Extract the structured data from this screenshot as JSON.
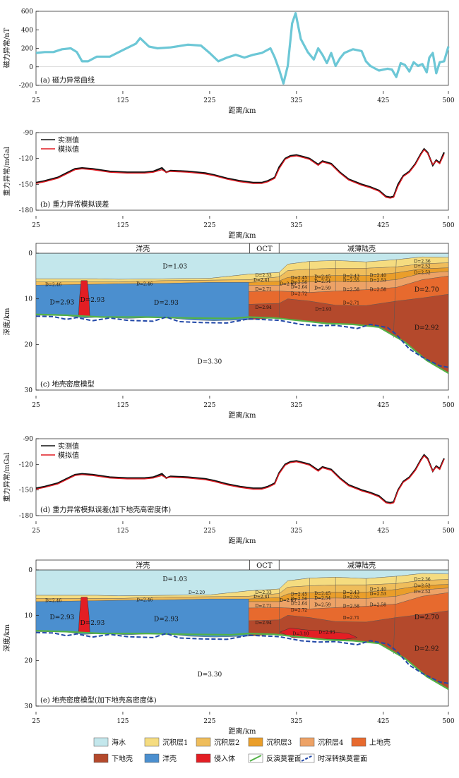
{
  "colors": {
    "magnetic": "#6cc7d6",
    "observed": "#111111",
    "modeled": "#e01b22",
    "sea": "#c3e7ec",
    "sed1": "#f5dc80",
    "sed2": "#efbd5b",
    "sed3": "#ea9e2a",
    "sed4": "#eda266",
    "upper_crust": "#e76a2e",
    "lower_crust": "#b4492c",
    "ocean_crust": "#4b8fcf",
    "intrusion": "#e31e24",
    "moho_inv": "#53b247",
    "moho_dt": "#2248a8"
  },
  "x_ticks": [
    "25",
    "125",
    "225",
    "325",
    "425",
    "500"
  ],
  "distance_label": "距离/km",
  "chart_data": [
    {
      "type": "line",
      "caption": "(a) 磁力异常曲线",
      "ylabel": "磁力异常/nT",
      "xlabel": "距离/km",
      "xlim": [
        25,
        500
      ],
      "ylim": [
        -200,
        600
      ],
      "yticks": [
        "600",
        "400",
        "200",
        "0",
        "-200"
      ],
      "series": [
        {
          "x": [
            25,
            35,
            45,
            55,
            65,
            72,
            78,
            85,
            95,
            110,
            125,
            140,
            145,
            155,
            165,
            180,
            200,
            215,
            225,
            235,
            245,
            255,
            265,
            275,
            285,
            295,
            300,
            305,
            310,
            315,
            320,
            324,
            330,
            338,
            345,
            350,
            355,
            360,
            365,
            370,
            375,
            380,
            390,
            400,
            405,
            410,
            420,
            430,
            435,
            440,
            445,
            450,
            455,
            460,
            465,
            470,
            475,
            478,
            482,
            486,
            490,
            495,
            500
          ],
          "y": [
            150,
            160,
            160,
            190,
            200,
            160,
            60,
            60,
            110,
            110,
            180,
            250,
            310,
            220,
            200,
            210,
            240,
            230,
            150,
            60,
            100,
            130,
            100,
            130,
            150,
            200,
            100,
            -30,
            -180,
            10,
            470,
            580,
            300,
            160,
            80,
            200,
            130,
            40,
            150,
            10,
            90,
            150,
            190,
            170,
            60,
            10,
            -40,
            -20,
            -30,
            -110,
            40,
            20,
            -50,
            50,
            10,
            30,
            -60,
            100,
            150,
            -70,
            50,
            60,
            220
          ]
        }
      ]
    },
    {
      "type": "line",
      "caption": "(b) 重力异常模拟误差",
      "ylabel": "重力异常/mGal",
      "xlabel": "距离/km",
      "xlim": [
        25,
        500
      ],
      "ylim": [
        -180,
        -90
      ],
      "yticks": [
        "-90",
        "-120",
        "-150",
        "-180"
      ],
      "legend": [
        "实测值",
        "模拟值"
      ],
      "series": [
        {
          "name": "实测值",
          "x": [
            25,
            35,
            50,
            60,
            70,
            78,
            90,
            110,
            130,
            150,
            160,
            170,
            175,
            180,
            200,
            220,
            230,
            245,
            260,
            275,
            285,
            292,
            300,
            305,
            312,
            318,
            325,
            333,
            340,
            350,
            355,
            365,
            375,
            385,
            400,
            410,
            420,
            428,
            433,
            437,
            442,
            448,
            455,
            462,
            468,
            472,
            476,
            482,
            486,
            490,
            495
          ],
          "y": [
            -148,
            -146,
            -142,
            -137,
            -132,
            -131,
            -132,
            -135,
            -136,
            -136,
            -135,
            -131,
            -136,
            -134,
            -135,
            -137,
            -139,
            -143,
            -146,
            -148,
            -148,
            -146,
            -142,
            -130,
            -120,
            -117,
            -116,
            -118,
            -120,
            -127,
            -123,
            -126,
            -136,
            -144,
            -150,
            -153,
            -157,
            -164,
            -165,
            -164,
            -150,
            -140,
            -135,
            -126,
            -115,
            -109,
            -113,
            -128,
            -122,
            -125,
            -113
          ]
        },
        {
          "name": "模拟值",
          "x": [
            25,
            35,
            50,
            60,
            70,
            78,
            90,
            110,
            130,
            150,
            160,
            170,
            175,
            180,
            200,
            220,
            230,
            245,
            260,
            275,
            285,
            292,
            300,
            305,
            312,
            318,
            325,
            333,
            340,
            350,
            355,
            365,
            375,
            385,
            400,
            410,
            420,
            428,
            433,
            437,
            442,
            448,
            455,
            462,
            468,
            472,
            476,
            482,
            486,
            490,
            495
          ],
          "y": [
            -149,
            -147,
            -143,
            -138,
            -133,
            -132,
            -133,
            -136,
            -137,
            -137,
            -136,
            -133,
            -136,
            -135,
            -136,
            -138,
            -140,
            -144,
            -147,
            -149,
            -149,
            -147,
            -143,
            -132,
            -121,
            -118,
            -117,
            -119,
            -121,
            -128,
            -124,
            -127,
            -137,
            -145,
            -151,
            -154,
            -158,
            -165,
            -166,
            -165,
            -152,
            -141,
            -136,
            -127,
            -116,
            -110,
            -114,
            -127,
            -123,
            -126,
            -115
          ]
        }
      ]
    },
    {
      "type": "section",
      "caption": "(c) 地壳密度模型",
      "ylabel": "深度/km",
      "xlabel": "距离/km",
      "xlim": [
        25,
        500
      ],
      "ylim": [
        0,
        30
      ],
      "yticks": [
        "0",
        "10",
        "20",
        "30"
      ],
      "zones": [
        "洋壳",
        "OCT",
        "减薄陆壳"
      ],
      "density_labels": [
        "D=1.03",
        "D=2.46",
        "D=2.93",
        "D=2.93",
        "D=2.93",
        "D=2.46",
        "D=3.30",
        "D=2.33",
        "D=2.41",
        "D=2.63",
        "D=2.71",
        "D=2.94",
        "D=2.45",
        "D=2.56",
        "D=2.64",
        "D=2.72",
        "D=2.45",
        "D=2.54",
        "D=2.59",
        "D=2.43",
        "D=2.55",
        "D=2.58",
        "D=2.71",
        "D=2.93",
        "D=2.40",
        "D=2.53",
        "D=2.58",
        "D=2.36",
        "D=2.52",
        "D=2.52",
        "D=2.70",
        "D=2.92"
      ]
    },
    {
      "type": "line",
      "caption": "(d) 重力异常模拟误差(加下地壳高密度体)",
      "ylabel": "重力异常/mGal",
      "xlabel": "距离/km",
      "xlim": [
        25,
        500
      ],
      "ylim": [
        -180,
        -90
      ],
      "yticks": [
        "-90",
        "-120",
        "-150",
        "-180"
      ],
      "legend": [
        "实测值",
        "模拟值"
      ],
      "series": [
        {
          "name": "实测值",
          "x": [
            25,
            35,
            50,
            60,
            70,
            78,
            90,
            110,
            130,
            150,
            160,
            170,
            175,
            180,
            200,
            220,
            230,
            245,
            260,
            275,
            285,
            292,
            300,
            305,
            312,
            318,
            325,
            333,
            340,
            350,
            355,
            365,
            375,
            385,
            400,
            410,
            420,
            428,
            433,
            437,
            442,
            448,
            455,
            462,
            468,
            472,
            476,
            482,
            486,
            490,
            495
          ],
          "y": [
            -148,
            -146,
            -142,
            -137,
            -132,
            -131,
            -132,
            -135,
            -136,
            -136,
            -135,
            -131,
            -136,
            -134,
            -135,
            -137,
            -139,
            -143,
            -146,
            -148,
            -148,
            -146,
            -142,
            -130,
            -120,
            -117,
            -116,
            -118,
            -120,
            -127,
            -123,
            -126,
            -136,
            -144,
            -150,
            -153,
            -157,
            -164,
            -165,
            -164,
            -150,
            -140,
            -135,
            -126,
            -115,
            -109,
            -113,
            -128,
            -122,
            -125,
            -113
          ]
        },
        {
          "name": "模拟值",
          "x": [
            25,
            35,
            50,
            60,
            70,
            78,
            90,
            110,
            130,
            150,
            160,
            170,
            175,
            180,
            200,
            220,
            230,
            245,
            260,
            275,
            285,
            292,
            300,
            305,
            312,
            318,
            325,
            333,
            340,
            350,
            355,
            365,
            375,
            385,
            400,
            410,
            420,
            428,
            433,
            437,
            442,
            448,
            455,
            462,
            468,
            472,
            476,
            482,
            486,
            490,
            495
          ],
          "y": [
            -149,
            -147,
            -143,
            -138,
            -133,
            -132,
            -133,
            -136,
            -137,
            -137,
            -136,
            -133,
            -136,
            -135,
            -136,
            -138,
            -140,
            -144,
            -147,
            -149,
            -149,
            -147,
            -143,
            -131,
            -121,
            -118,
            -117,
            -119,
            -121,
            -128,
            -124,
            -127,
            -137,
            -145,
            -151,
            -154,
            -158,
            -165,
            -166,
            -165,
            -151,
            -141,
            -136,
            -127,
            -116,
            -110,
            -114,
            -128,
            -123,
            -126,
            -114
          ]
        }
      ]
    },
    {
      "type": "section",
      "caption": "(e) 地壳密度模型(加下地壳高密度体)",
      "ylabel": "深度/km",
      "xlabel": "距离/km",
      "xlim": [
        25,
        500
      ],
      "ylim": [
        0,
        30
      ],
      "yticks": [
        "0",
        "10",
        "20",
        "30"
      ],
      "zones": [
        "洋壳",
        "OCT",
        "减薄陆壳"
      ],
      "density_labels": [
        "D=1.03",
        "D=2.46",
        "D=2.93",
        "D=2.93",
        "D=2.93",
        "D=2.46",
        "D=2.20",
        "D=3.30",
        "D=2.33",
        "D=2.41",
        "D=2.63",
        "D=2.71",
        "D=2.94",
        "D=2.45",
        "D=2.56",
        "D=2.64",
        "D=2.72",
        "D=2.45",
        "D=2.54",
        "D=2.59",
        "D=2.43",
        "D=2.55",
        "D=2.58",
        "D=2.71",
        "D=2.93",
        "D=2.40",
        "D=2.53",
        "D=2.58",
        "D=2.36",
        "D=2.52",
        "D=2.52",
        "D=2.70",
        "D=2.92",
        "D=3.10"
      ]
    }
  ],
  "legend": [
    {
      "label": "海水",
      "color": "#c3e7ec",
      "kind": "box"
    },
    {
      "label": "沉积层1",
      "color": "#f5dc80",
      "kind": "box"
    },
    {
      "label": "沉积层2",
      "color": "#efbd5b",
      "kind": "box"
    },
    {
      "label": "沉积层3",
      "color": "#ea9e2a",
      "kind": "box"
    },
    {
      "label": "沉积层4",
      "color": "#eda266",
      "kind": "box"
    },
    {
      "label": "上地壳",
      "color": "#e76a2e",
      "kind": "box"
    },
    {
      "label": "下地壳",
      "color": "#b4492c",
      "kind": "box"
    },
    {
      "label": "洋壳",
      "color": "#4b8fcf",
      "kind": "box"
    },
    {
      "label": "侵入体",
      "color": "#e31e24",
      "kind": "box"
    },
    {
      "label": "反演莫霍面",
      "color": "#53b247",
      "kind": "line"
    },
    {
      "label": "时深转换莫霍面",
      "color": "#2248a8",
      "kind": "dash"
    }
  ]
}
